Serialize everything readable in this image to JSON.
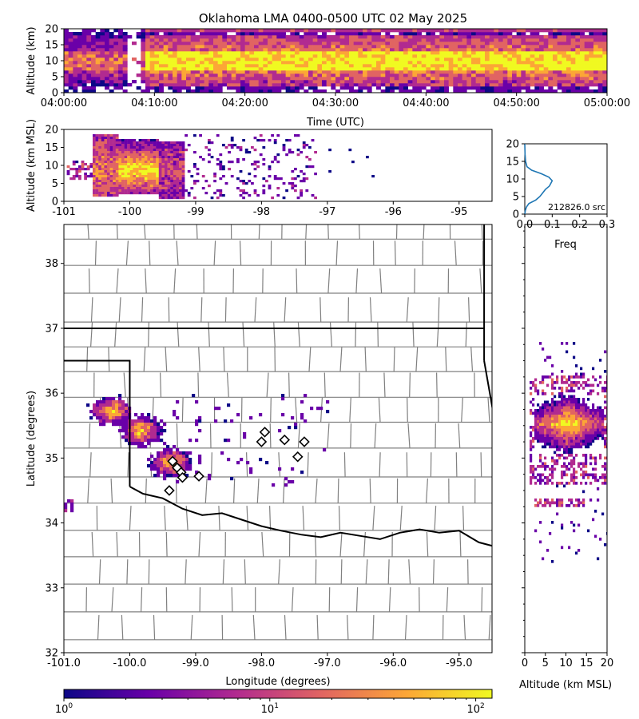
{
  "title": "Oklahoma LMA 0400-0500 UTC 02 May 2025",
  "colors": {
    "viridis_like_plasma": [
      "#0d0887",
      "#6a00a8",
      "#b12a90",
      "#e16462",
      "#fca636",
      "#f0f921"
    ],
    "state_border": "#000000",
    "county_border": "#808080",
    "station_marker": "#ffffff",
    "histogram_line": "#1f77b4"
  },
  "chart_data": [
    {
      "panel": "altitude-time",
      "type": "heatmap",
      "ylabel": "Altitude (km)",
      "xlabel": "Time (UTC)",
      "x_ticks": [
        "04:00:00",
        "04:10:00",
        "04:20:00",
        "04:30:00",
        "04:40:00",
        "04:50:00",
        "05:00:00"
      ],
      "y_ticks": [
        "0",
        "5",
        "10",
        "15",
        "20"
      ],
      "ylim": [
        0,
        20
      ],
      "xlim": [
        "04:00:00",
        "05:00:00"
      ],
      "scale": "log",
      "core_altitude_km": [
        7,
        13
      ]
    },
    {
      "panel": "altitude-longitude",
      "type": "heatmap",
      "ylabel": "Altitude (km MSL)",
      "x_ticks": [
        "-101",
        "-100",
        "-99",
        "-98",
        "-97",
        "-96",
        "-95"
      ],
      "y_ticks": [
        "0",
        "5",
        "10",
        "15",
        "20"
      ],
      "xlim": [
        -101,
        -94.5
      ],
      "ylim": [
        0,
        20
      ],
      "core_longitude": [
        -100.2,
        -99.6
      ]
    },
    {
      "panel": "altitude-histogram",
      "type": "line",
      "xlabel": "Freq",
      "x_ticks": [
        "0.0",
        "0.1",
        "0.2",
        "0.3"
      ],
      "y_ticks": [
        "0",
        "5",
        "10",
        "15",
        "20"
      ],
      "xlim": [
        0,
        0.3
      ],
      "ylim": [
        0,
        20
      ],
      "annotation": "212826.0 src",
      "series": [
        {
          "x": [
            0.0,
            0.002,
            0.006,
            0.015,
            0.04,
            0.055,
            0.065,
            0.075,
            0.09,
            0.1,
            0.088,
            0.06,
            0.025,
            0.008,
            0.003,
            0.001,
            0.0
          ],
          "y": [
            0,
            1,
            2,
            3,
            4,
            5,
            6,
            7,
            8,
            9.5,
            10.5,
            11.5,
            12.5,
            13.5,
            15,
            17,
            20
          ]
        }
      ]
    },
    {
      "panel": "plan-view",
      "type": "heatmap",
      "xlabel": "Longitude (degrees)",
      "ylabel": "Latitude (degrees)",
      "x_ticks": [
        "-101.0",
        "-100.0",
        "-99.0",
        "-98.0",
        "-97.0",
        "-96.0",
        "-95.0"
      ],
      "y_ticks": [
        "32",
        "33",
        "34",
        "35",
        "36",
        "37",
        "38"
      ],
      "xlim": [
        -101.0,
        -94.5
      ],
      "ylim": [
        32,
        38.6
      ],
      "core_cells": [
        {
          "lon": -100.3,
          "lat": 35.75
        },
        {
          "lon": -99.85,
          "lat": 35.45
        },
        {
          "lon": -99.4,
          "lat": 34.95
        }
      ],
      "stations": [
        {
          "lon": -99.35,
          "lat": 34.95
        },
        {
          "lon": -99.28,
          "lat": 34.85
        },
        {
          "lon": -99.22,
          "lat": 34.78
        },
        {
          "lon": -99.2,
          "lat": 34.7
        },
        {
          "lon": -98.95,
          "lat": 34.72
        },
        {
          "lon": -99.4,
          "lat": 34.5
        },
        {
          "lon": -98.0,
          "lat": 35.25
        },
        {
          "lon": -97.95,
          "lat": 35.4
        },
        {
          "lon": -97.65,
          "lat": 35.28
        },
        {
          "lon": -97.35,
          "lat": 35.25
        },
        {
          "lon": -97.45,
          "lat": 35.02
        }
      ]
    },
    {
      "panel": "latitude-altitude",
      "type": "heatmap",
      "xlabel": "Altitude (km MSL)",
      "x_ticks": [
        "0",
        "5",
        "10",
        "15",
        "20"
      ],
      "xlim": [
        0,
        20
      ],
      "ylim": [
        32,
        38.6
      ]
    }
  ],
  "colorbar": {
    "ticks": [
      "10",
      "10",
      "10"
    ],
    "exponents": [
      "0",
      "1",
      "2"
    ],
    "range": [
      1,
      120
    ],
    "scale": "log"
  }
}
